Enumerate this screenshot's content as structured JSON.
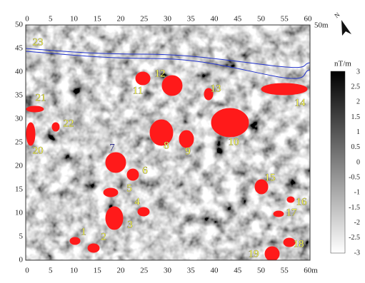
{
  "map": {
    "north": "N",
    "x_ticks_top": [
      "0",
      "5",
      "10",
      "15",
      "20",
      "25",
      "30",
      "35",
      "40",
      "45",
      "50",
      "55",
      "60"
    ],
    "x_ticks_bottom": [
      "0",
      "5",
      "10",
      "15",
      "20",
      "25",
      "30",
      "35",
      "40",
      "45",
      "50",
      "55",
      "60m"
    ],
    "y_ticks": [
      "0",
      "5",
      "10",
      "15",
      "20",
      "25",
      "30",
      "35",
      "40",
      "45",
      "50"
    ],
    "y_unit_label": "50m",
    "colorbar": {
      "unit": "nT/m",
      "ticks": [
        "3",
        "2.5",
        "2",
        "1.5",
        "1",
        "0.5",
        "0",
        "-0.5",
        "-1",
        "-1.5",
        "-2",
        "-2.5",
        "-3"
      ]
    },
    "anomaly_labels": [
      "1",
      "2",
      "3",
      "4",
      "5",
      "6",
      "7",
      "8",
      "9",
      "10",
      "11",
      "12",
      "13",
      "14",
      "15",
      "16",
      "17",
      "18",
      "19",
      "20",
      "21",
      "22",
      "23"
    ]
  }
}
